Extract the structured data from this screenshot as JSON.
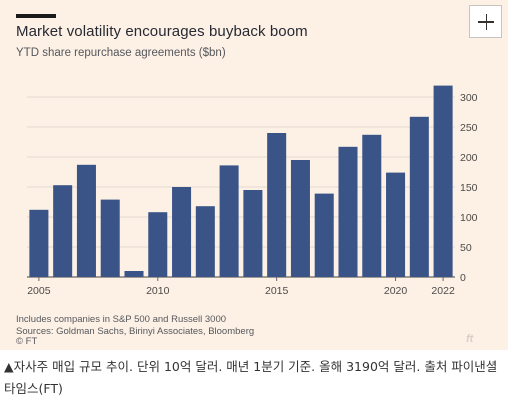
{
  "header": {
    "title": "Market volatility encourages buyback boom",
    "subtitle": "YTD share repurchase agreements ($bn)",
    "expand_icon": "plus-icon"
  },
  "footer": {
    "notes": [
      "Includes companies in S&P 500 and Russell 3000",
      "Sources: Goldman Sachs, Birinyi Associates, Bloomberg"
    ],
    "credit": "© FT",
    "watermark_icon": "ft-logo-icon"
  },
  "caption": "▲자사주 매입 규모 추이. 단위 10억 달러. 매년 1분기 기준. 올해 3190억 달러. 출처 파이낸셜타임스(FT)",
  "chart_data": {
    "type": "bar",
    "title": "Market volatility encourages buyback boom",
    "subtitle": "YTD share repurchase agreements ($bn)",
    "xlabel": "",
    "ylabel": "",
    "categories": [
      "2005",
      "2006",
      "2007",
      "2008",
      "2009",
      "2010",
      "2011",
      "2012",
      "2013",
      "2014",
      "2015",
      "2016",
      "2017",
      "2018",
      "2019",
      "2020",
      "2021",
      "2022"
    ],
    "x_tick_labels": [
      "2005",
      "2010",
      "2015",
      "2020",
      "2022"
    ],
    "values": [
      112,
      153,
      187,
      129,
      10,
      108,
      150,
      118,
      186,
      145,
      240,
      195,
      139,
      217,
      237,
      174,
      267,
      319
    ],
    "y_ticks": [
      0,
      50,
      100,
      150,
      200,
      250,
      300
    ],
    "ylim": [
      0,
      320
    ],
    "grid": true,
    "y_axis_side": "right",
    "bar_color": "#3a5488",
    "grid_color": "#e3d9ce",
    "background_color": "#fdf1e6"
  }
}
